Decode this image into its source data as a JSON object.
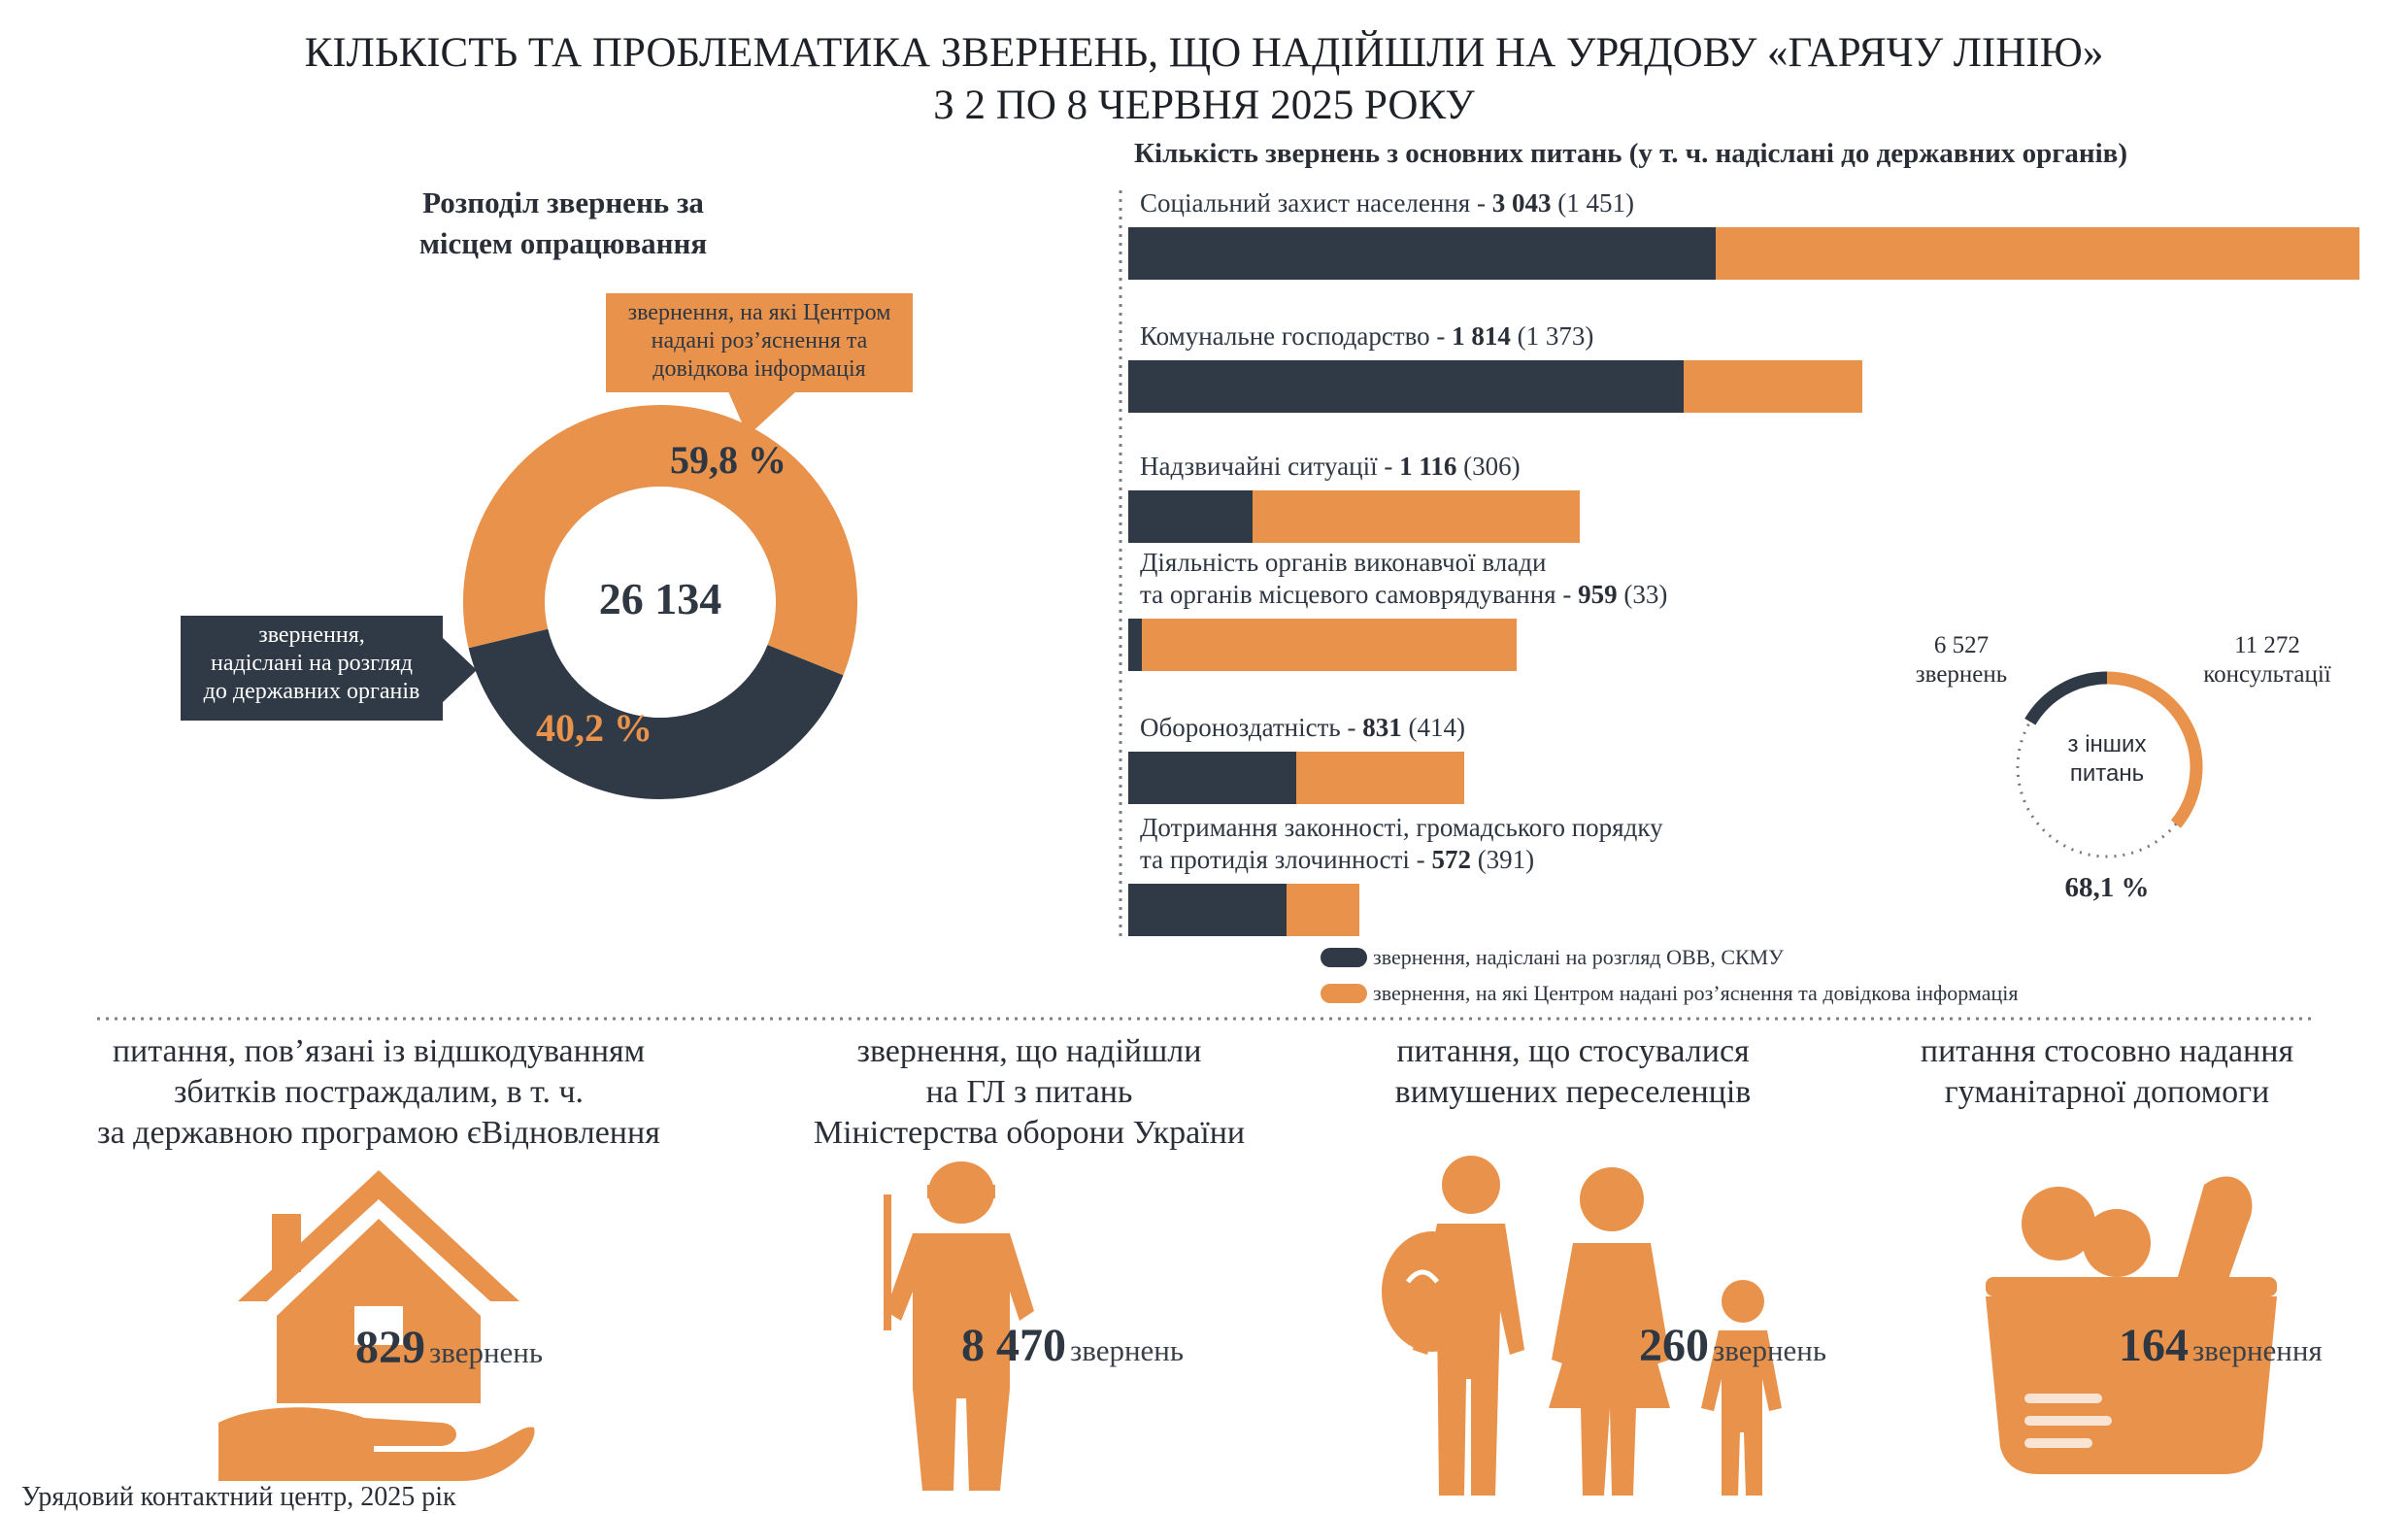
{
  "title": {
    "line1": "КІЛЬКІСТЬ ТА ПРОБЛЕМАТИКА ЗВЕРНЕНЬ, ЩО НАДІЙШЛИ НА УРЯДОВУ «ГАРЯЧУ ЛІНІЮ»",
    "line2": "З 2 ПО 8 ЧЕРВНЯ 2025 РОКУ"
  },
  "colors": {
    "dark": "#2f3a46",
    "orange": "#e8924c"
  },
  "donut": {
    "title_line1": "Розподіл звернень за",
    "title_line2": "місцем опрацювання",
    "total": "26 134",
    "orange_pct_label": "59,8 %",
    "dark_pct_label": "40,2 %",
    "callout_orange": [
      "звернення, на які Центром",
      "надані роз’яснення та",
      "довідкова інформація"
    ],
    "callout_dark": [
      "звернення,",
      "надіслані на розгляд",
      "до державних органів"
    ]
  },
  "bars": {
    "title": "Кількість звернень з основних питань (у т. ч. надіслані до державних органів)",
    "legend_dark": "звернення, надіслані на розгляд ОВВ, СКМУ",
    "legend_orange": "звернення, на які Центром надані роз’яснення та довідкова інформація"
  },
  "other": {
    "left_value": "6 527",
    "left_label": "звернень",
    "right_value": "11 272",
    "right_label": "консультації",
    "center_line1": "з інших",
    "center_line2": "питань",
    "pct": "68,1 %"
  },
  "categories": [
    {
      "title": [
        "питання, пов’язані із відшкодуванням",
        "збитків постраждалим, в т. ч.",
        "за державною програмою єВідновлення"
      ],
      "value": "829",
      "unit": "звернень",
      "icon": "house-hand-icon"
    },
    {
      "title": [
        "звернення, що надійшли",
        "на ГЛ з питань",
        "Міністерства оборони України"
      ],
      "value": "8 470",
      "unit": "звернень",
      "icon": "soldier-icon"
    },
    {
      "title": [
        "питання, що стосувалися",
        "вимушених переселенців"
      ],
      "value": "260",
      "unit": "звернень",
      "icon": "family-icon"
    },
    {
      "title": [
        "питання стосовно надання",
        "гуманітарної допомоги"
      ],
      "value": "164",
      "unit": "звернення",
      "icon": "grocery-basket-icon"
    }
  ],
  "footer": "Урядовий контактний центр, 2025 рік",
  "chart_data": [
    {
      "type": "pie",
      "subtype": "donut",
      "title": "Розподіл звернень за місцем опрацювання",
      "total": 26134,
      "slices": [
        {
          "name": "звернення, на які Центром надані роз’яснення та довідкова інформація",
          "value": 59.8,
          "color": "#e8924c"
        },
        {
          "name": "звернення, надіслані на розгляд до державних органів",
          "value": 40.2,
          "color": "#2f3a46"
        }
      ]
    },
    {
      "type": "bar",
      "orientation": "horizontal",
      "stacked": true,
      "title": "Кількість звернень з основних питань (у т. ч. надіслані до державних органів)",
      "categories": [
        [
          "Соціальний захист населення"
        ],
        [
          "Комунальне господарство"
        ],
        [
          "Надзвичайні ситуації"
        ],
        [
          "Діяльність органів виконавчої влади",
          "та органів місцевого самоврядування"
        ],
        [
          "Обороноздатність"
        ],
        [
          "Дотримання законності, громадського порядку",
          "та протидія злочинності"
        ]
      ],
      "totals": [
        3043,
        1814,
        1116,
        959,
        831,
        572
      ],
      "totals_label": [
        "3 043",
        "1 814",
        "1 116",
        "959",
        "831",
        "572"
      ],
      "sent_label": [
        "(1 451)",
        "(1 373)",
        "(306)",
        "(33)",
        "(414)",
        "(391)"
      ],
      "series": [
        {
          "name": "звернення, надіслані на розгляд ОВВ, СКМУ",
          "values": [
            1451,
            1373,
            306,
            33,
            414,
            391
          ],
          "color": "#2f3a46"
        },
        {
          "name": "звернення, на які Центром надані роз’яснення та довідкова інформація",
          "values": [
            1592,
            441,
            810,
            926,
            417,
            181
          ],
          "color": "#e8924c"
        }
      ],
      "legend": "bottom"
    },
    {
      "type": "pie",
      "subtype": "ring",
      "slices": [
        {
          "name": "звернень",
          "value": 6527,
          "color": "#2f3a46"
        },
        {
          "name": "консультації",
          "value": 11272,
          "color": "#e8924c"
        }
      ],
      "shown_percent": 68.1
    }
  ]
}
